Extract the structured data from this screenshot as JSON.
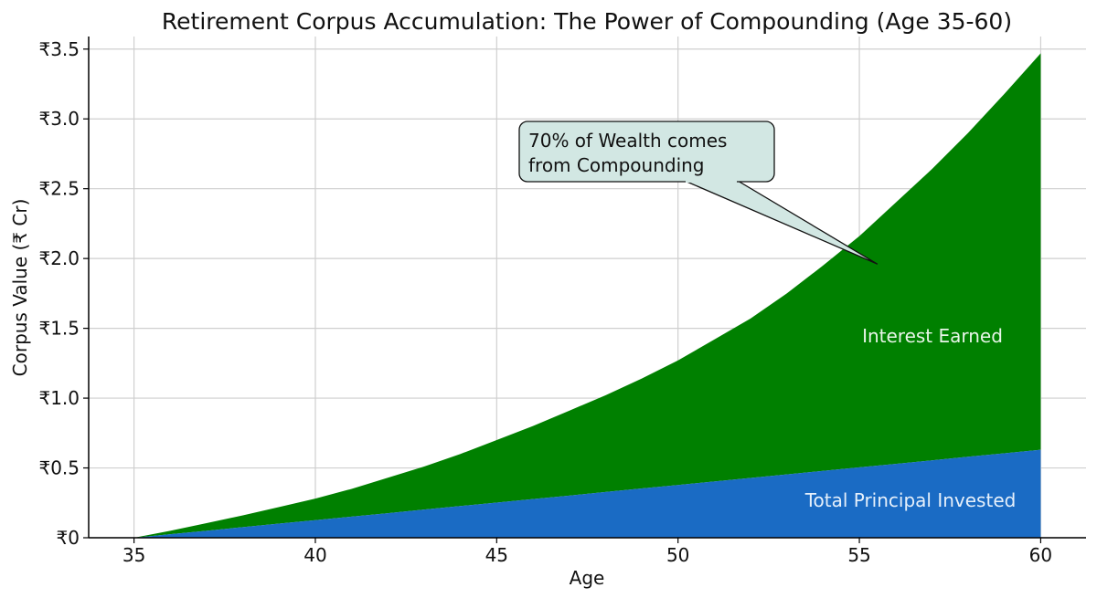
{
  "chart_data": {
    "type": "area",
    "title": "Retirement Corpus Accumulation: The Power of Compounding (Age 35-60)",
    "xlabel": "Age",
    "ylabel": "Corpus Value (₹ Cr)",
    "xlim": [
      33.75,
      61.25
    ],
    "ylim": [
      0,
      3.59
    ],
    "grid": true,
    "x_ticks": [
      35,
      40,
      45,
      50,
      55,
      60
    ],
    "x_tick_labels": [
      "35",
      "40",
      "45",
      "50",
      "55",
      "60"
    ],
    "y_ticks": [
      0,
      0.5,
      1.0,
      1.5,
      2.0,
      2.5,
      3.0,
      3.5
    ],
    "y_tick_labels": [
      "₹0",
      "₹0.5",
      "₹1.0",
      "₹1.5",
      "₹2.0",
      "₹2.5",
      "₹3.0",
      "₹3.5"
    ],
    "x": [
      35,
      36,
      37,
      38,
      39,
      40,
      41,
      42,
      43,
      44,
      45,
      46,
      47,
      48,
      49,
      50,
      51,
      52,
      53,
      54,
      55,
      56,
      57,
      58,
      59,
      60
    ],
    "series": [
      {
        "name": "Total Principal Invested",
        "color": "#1a6bc4",
        "values": [
          0,
          0.025,
          0.05,
          0.076,
          0.101,
          0.126,
          0.151,
          0.176,
          0.202,
          0.227,
          0.252,
          0.277,
          0.302,
          0.328,
          0.353,
          0.378,
          0.403,
          0.428,
          0.454,
          0.479,
          0.504,
          0.529,
          0.554,
          0.58,
          0.605,
          0.63
        ]
      },
      {
        "name": "Interest Earned",
        "color": "#008000",
        "total_values": [
          0,
          0.05,
          0.105,
          0.16,
          0.22,
          0.28,
          0.35,
          0.43,
          0.51,
          0.6,
          0.7,
          0.8,
          0.91,
          1.02,
          1.14,
          1.27,
          1.42,
          1.57,
          1.75,
          1.95,
          2.16,
          2.4,
          2.64,
          2.9,
          3.18,
          3.47
        ]
      }
    ],
    "annotation": {
      "text_lines": [
        "70% of Wealth comes",
        "from Compounding"
      ],
      "xy": [
        55.5,
        1.96
      ],
      "box_color": "#d2e7e3"
    }
  }
}
